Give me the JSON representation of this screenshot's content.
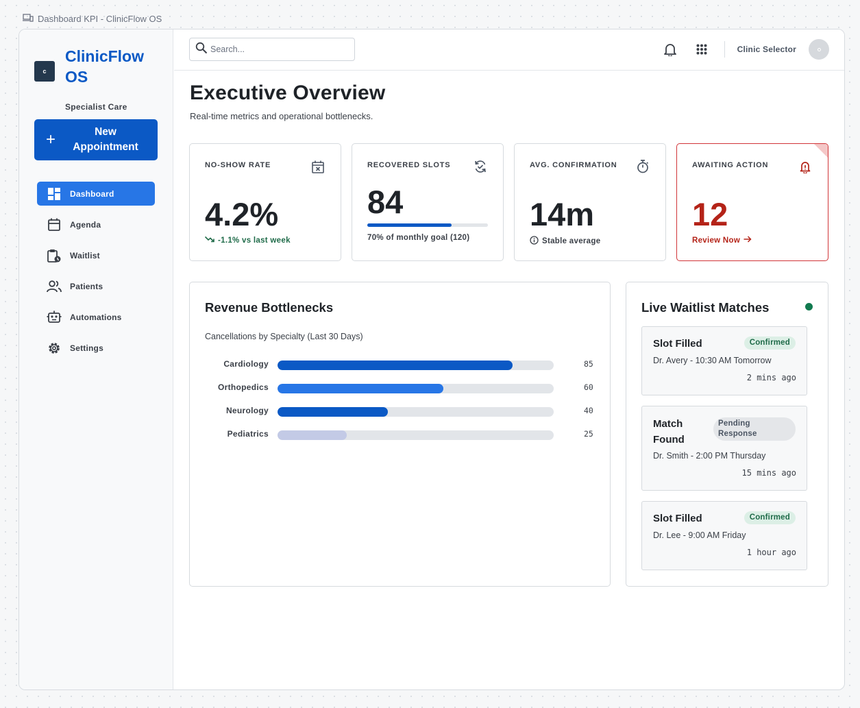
{
  "window_caption": "Dashboard KPI - ClinicFlow OS",
  "brand": {
    "name": "ClinicFlow OS",
    "logo_letter": "c",
    "tagline": "Specialist Care"
  },
  "new_appointment": {
    "plus": "+",
    "label": "New Appointment"
  },
  "nav": [
    {
      "label": "Dashboard",
      "icon": "dashboard-icon",
      "active": true
    },
    {
      "label": "Agenda",
      "icon": "calendar-icon",
      "active": false
    },
    {
      "label": "Waitlist",
      "icon": "clipboard-clock-icon",
      "active": false
    },
    {
      "label": "Patients",
      "icon": "people-icon",
      "active": false
    },
    {
      "label": "Automations",
      "icon": "robot-icon",
      "active": false
    },
    {
      "label": "Settings",
      "icon": "gear-icon",
      "active": false
    }
  ],
  "topbar": {
    "search_placeholder": "Search...",
    "clinic_selector": "Clinic Selector"
  },
  "page": {
    "title": "Executive Overview",
    "subtitle": "Real-time metrics and operational bottlenecks."
  },
  "kpis": {
    "no_show": {
      "label": "NO-SHOW RATE",
      "value": "4.2%",
      "trend": "-1.1% vs last week",
      "trend_color": "#1f6b49"
    },
    "recovered": {
      "label": "RECOVERED SLOTS",
      "value": "84",
      "progress": 0.7,
      "goal_text": "70% of monthly goal (120)",
      "accent": "#0b59c5"
    },
    "confirmation": {
      "label": "AVG. CONFIRMATION",
      "value": "14m",
      "note": "Stable average"
    },
    "awaiting": {
      "label": "AWAITING ACTION",
      "value": "12",
      "link": "Review Now",
      "accent": "#b42318"
    }
  },
  "revenue": {
    "title": "Revenue Bottlenecks",
    "subtitle": "Cancellations by Specialty (Last 30 Days)",
    "max": 100,
    "rows": [
      {
        "label": "Cardiology",
        "value": 85,
        "color": "#0b59c5"
      },
      {
        "label": "Orthopedics",
        "value": 60,
        "color": "#2776e6"
      },
      {
        "label": "Neurology",
        "value": 40,
        "color": "#0b59c5"
      },
      {
        "label": "Pediatrics",
        "value": 25,
        "color": "#c3cae6"
      }
    ]
  },
  "waitlist": {
    "title": "Live Waitlist Matches",
    "live_color": "#117a4f",
    "matches": [
      {
        "title": "Slot Filled",
        "status": "Confirmed",
        "detail": "Dr. Avery - 10:30 AM Tomorrow",
        "time": "2 mins ago"
      },
      {
        "title": "Match Found",
        "status": "Pending Response",
        "detail": "Dr. Smith - 2:00 PM Thursday",
        "time": "15 mins ago"
      },
      {
        "title": "Slot Filled",
        "status": "Confirmed",
        "detail": "Dr. Lee - 9:00 AM Friday",
        "time": "1 hour ago"
      }
    ]
  }
}
